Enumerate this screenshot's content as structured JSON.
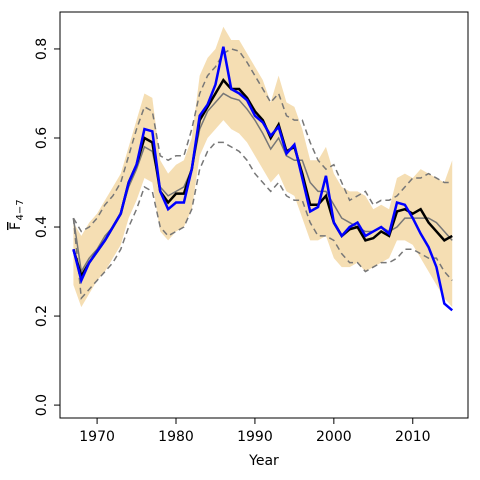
{
  "chart_data": {
    "type": "line",
    "xlabel": "Year",
    "ylabel": "F",
    "ylabel_sub": "4−7",
    "xlim": [
      1965.3,
      2017.0
    ],
    "ylim": [
      -0.029,
      0.883
    ],
    "xticks": [
      1970,
      1980,
      1990,
      2000,
      2010
    ],
    "yticks": [
      {
        "value": 0,
        "label": "0.0"
      },
      0.2,
      0.4,
      0.6,
      0.8
    ],
    "x": [
      1967,
      1968,
      1969,
      1970,
      1971,
      1972,
      1973,
      1974,
      1975,
      1976,
      1977,
      1978,
      1979,
      1980,
      1981,
      1982,
      1983,
      1984,
      1985,
      1986,
      1987,
      1988,
      1989,
      1990,
      1991,
      1992,
      1993,
      1994,
      1995,
      1996,
      1997,
      1998,
      1999,
      2000,
      2001,
      2002,
      2003,
      2004,
      2005,
      2006,
      2007,
      2008,
      2009,
      2010,
      2011,
      2012,
      2013,
      2014,
      2015
    ],
    "band": {
      "color": "#f5deb3",
      "upper": [
        0.41,
        0.38,
        0.41,
        0.43,
        0.46,
        0.49,
        0.52,
        0.58,
        0.64,
        0.7,
        0.69,
        0.55,
        0.52,
        0.54,
        0.55,
        0.6,
        0.74,
        0.78,
        0.8,
        0.85,
        0.82,
        0.82,
        0.79,
        0.76,
        0.73,
        0.68,
        0.74,
        0.68,
        0.67,
        0.62,
        0.55,
        0.55,
        0.58,
        0.52,
        0.49,
        0.48,
        0.48,
        0.47,
        0.44,
        0.45,
        0.44,
        0.51,
        0.52,
        0.51,
        0.53,
        0.52,
        0.51,
        0.5,
        0.55
      ],
      "lower": [
        0.27,
        0.22,
        0.25,
        0.28,
        0.3,
        0.33,
        0.36,
        0.42,
        0.46,
        0.51,
        0.5,
        0.39,
        0.37,
        0.39,
        0.4,
        0.44,
        0.56,
        0.6,
        0.62,
        0.64,
        0.62,
        0.61,
        0.59,
        0.56,
        0.53,
        0.5,
        0.52,
        0.48,
        0.47,
        0.42,
        0.37,
        0.37,
        0.38,
        0.33,
        0.31,
        0.31,
        0.32,
        0.3,
        0.31,
        0.32,
        0.33,
        0.37,
        0.37,
        0.36,
        0.33,
        0.3,
        0.27,
        0.24,
        0.22
      ]
    },
    "series": [
      {
        "color": "#777777",
        "dash": true,
        "width": 1.5,
        "values": [
          0.42,
          0.39,
          0.4,
          0.42,
          0.45,
          0.47,
          0.5,
          0.56,
          0.62,
          0.67,
          0.66,
          0.56,
          0.55,
          0.56,
          0.56,
          0.62,
          0.7,
          0.74,
          0.76,
          0.79,
          0.8,
          0.795,
          0.77,
          0.74,
          0.71,
          0.68,
          0.7,
          0.65,
          0.64,
          0.64,
          0.59,
          0.55,
          0.53,
          0.54,
          0.5,
          0.46,
          0.47,
          0.48,
          0.45,
          0.46,
          0.46,
          0.47,
          0.49,
          0.51,
          0.51,
          0.52,
          0.51,
          0.5,
          0.5
        ]
      },
      {
        "color": "#777777",
        "dash": true,
        "width": 1.5,
        "values": [
          0.42,
          0.24,
          0.26,
          0.28,
          0.3,
          0.32,
          0.35,
          0.4,
          0.44,
          0.49,
          0.48,
          0.4,
          0.38,
          0.39,
          0.4,
          0.44,
          0.53,
          0.57,
          0.59,
          0.59,
          0.58,
          0.57,
          0.55,
          0.52,
          0.5,
          0.48,
          0.5,
          0.47,
          0.46,
          0.46,
          0.41,
          0.38,
          0.38,
          0.37,
          0.34,
          0.32,
          0.32,
          0.3,
          0.31,
          0.32,
          0.32,
          0.33,
          0.35,
          0.35,
          0.34,
          0.33,
          0.33,
          0.3,
          0.28
        ]
      },
      {
        "color": "#777777",
        "dash": false,
        "width": 1.5,
        "values": [
          0.42,
          0.3,
          0.33,
          0.35,
          0.38,
          0.4,
          0.43,
          0.49,
          0.53,
          0.58,
          0.57,
          0.49,
          0.47,
          0.48,
          0.49,
          0.53,
          0.62,
          0.66,
          0.68,
          0.7,
          0.69,
          0.685,
          0.665,
          0.64,
          0.61,
          0.575,
          0.6,
          0.56,
          0.55,
          0.55,
          0.5,
          0.48,
          0.48,
          0.45,
          0.42,
          0.41,
          0.4,
          0.39,
          0.39,
          0.4,
          0.39,
          0.4,
          0.42,
          0.42,
          0.42,
          0.42,
          0.41,
          0.39,
          0.37
        ]
      },
      {
        "color": "#000000",
        "dash": false,
        "width": 2.5,
        "values": [
          0.35,
          0.29,
          0.32,
          0.345,
          0.37,
          0.4,
          0.43,
          0.5,
          0.54,
          0.6,
          0.59,
          0.48,
          0.455,
          0.475,
          0.475,
          0.53,
          0.64,
          0.67,
          0.7,
          0.73,
          0.71,
          0.71,
          0.69,
          0.66,
          0.64,
          0.6,
          0.63,
          0.57,
          0.58,
          0.52,
          0.45,
          0.45,
          0.47,
          0.41,
          0.38,
          0.395,
          0.4,
          0.37,
          0.375,
          0.39,
          0.38,
          0.435,
          0.44,
          0.43,
          0.44,
          0.41,
          0.39,
          0.37,
          0.38
        ]
      },
      {
        "color": "#0000ff",
        "dash": false,
        "width": 2.5,
        "values": [
          0.35,
          0.28,
          0.32,
          0.345,
          0.37,
          0.4,
          0.43,
          0.5,
          0.54,
          0.62,
          0.615,
          0.48,
          0.44,
          0.455,
          0.455,
          0.53,
          0.65,
          0.675,
          0.72,
          0.805,
          0.71,
          0.7,
          0.685,
          0.65,
          0.635,
          0.605,
          0.625,
          0.565,
          0.585,
          0.51,
          0.435,
          0.445,
          0.515,
          0.41,
          0.38,
          0.4,
          0.41,
          0.38,
          0.39,
          0.4,
          0.385,
          0.455,
          0.45,
          0.42,
          0.385,
          0.355,
          0.31,
          0.228,
          0.213
        ]
      }
    ]
  }
}
